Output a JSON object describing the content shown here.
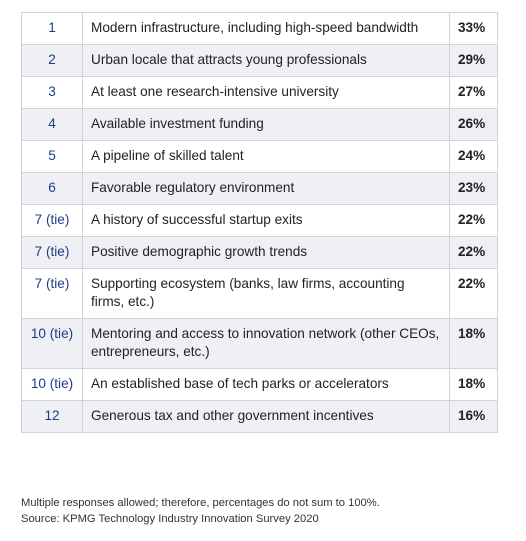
{
  "rows": [
    {
      "rank": "1",
      "factor": "Modern infrastructure, including high-speed bandwidth",
      "pct": "33%"
    },
    {
      "rank": "2",
      "factor": "Urban locale that attracts young professionals",
      "pct": "29%"
    },
    {
      "rank": "3",
      "factor": "At least one research-intensive university",
      "pct": "27%"
    },
    {
      "rank": "4",
      "factor": "Available investment funding",
      "pct": "26%"
    },
    {
      "rank": "5",
      "factor": "A pipeline of skilled talent",
      "pct": "24%"
    },
    {
      "rank": "6",
      "factor": "Favorable regulatory environment",
      "pct": "23%"
    },
    {
      "rank": "7 (tie)",
      "factor": "A history of successful startup exits",
      "pct": "22%"
    },
    {
      "rank": "7 (tie)",
      "factor": "Positive demographic growth trends",
      "pct": "22%"
    },
    {
      "rank": "7 (tie)",
      "factor": "Supporting ecosystem (banks, law firms, accounting firms, etc.)",
      "pct": "22%"
    },
    {
      "rank": "10 (tie)",
      "factor": "Mentoring and access to innovation network (other CEOs, entrepreneurs, etc.)",
      "pct": "18%"
    },
    {
      "rank": "10 (tie)",
      "factor": "An established base of tech parks or accelerators",
      "pct": "18%"
    },
    {
      "rank": "12",
      "factor": "Generous tax and other government incentives",
      "pct": "16%"
    }
  ],
  "footnote": {
    "note": "Multiple responses allowed; therefore, percentages do not sum to 100%.",
    "source": "Source: KPMG Technology Industry Innovation Survey 2020"
  },
  "colors": {
    "rank_text": "#1f3c88",
    "row_alt_bg": "#eef0f4",
    "border": "#cfd4da"
  }
}
